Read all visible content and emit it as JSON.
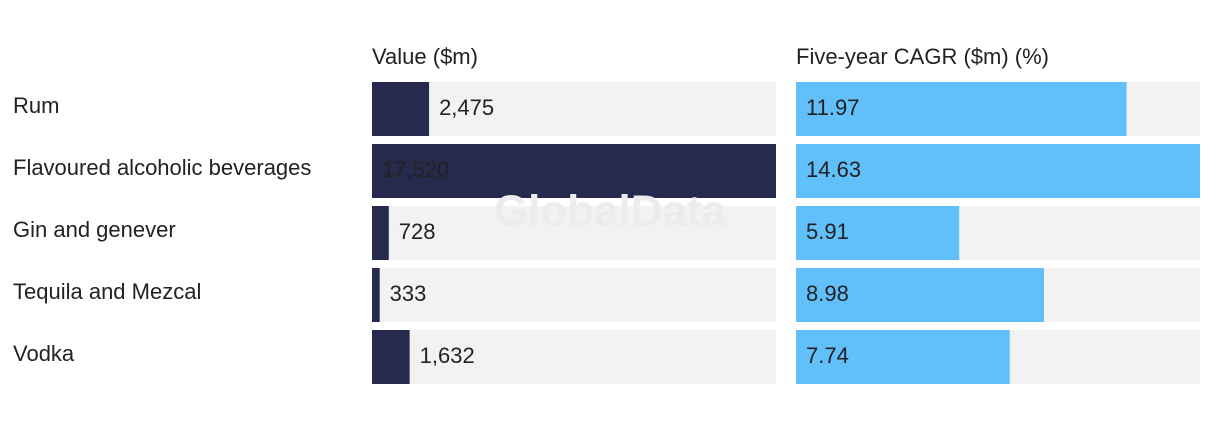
{
  "chart_data": {
    "type": "bar",
    "orientation": "horizontal",
    "categories": [
      "Rum",
      "Flavoured alcoholic beverages",
      "Gin and genever",
      "Tequila and Mezcal",
      "Vodka"
    ],
    "series": [
      {
        "name": "Value ($m)",
        "color": "#262a4c",
        "values": [
          2475,
          17520,
          728,
          333,
          1632
        ],
        "value_labels": [
          "2,475",
          "17,520",
          "728",
          "333",
          "1,632"
        ]
      },
      {
        "name": "Five-year CAGR ($m) (%)",
        "color": "#61bff9",
        "values": [
          11.97,
          14.63,
          5.91,
          8.98,
          7.74
        ]
      }
    ],
    "track_color": "#f2f2f2",
    "watermark": "GlobalData"
  }
}
